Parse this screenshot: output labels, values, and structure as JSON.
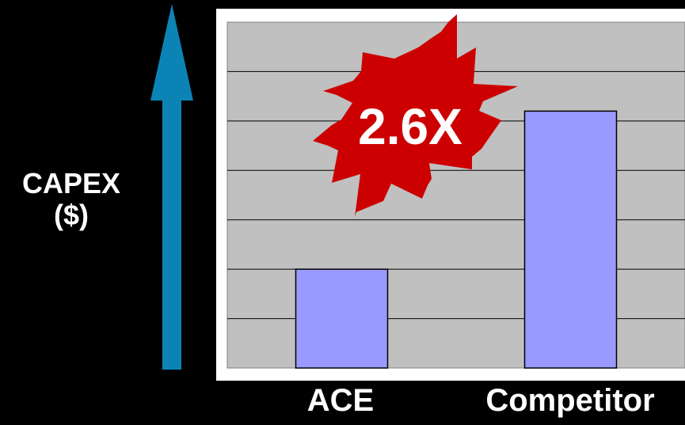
{
  "chart_data": {
    "type": "bar",
    "title": "",
    "ylabel_lines": [
      "CAPEX",
      "($)"
    ],
    "categories": [
      "ACE",
      "Competitor"
    ],
    "values": [
      1,
      2.6
    ],
    "ylim": [
      0,
      3.5
    ],
    "grid": true,
    "annotation": "2.6X",
    "colors": {
      "background": "#000000",
      "plot_frame": "#ffffff",
      "plot_area": "#c0c0c0",
      "bar": "#9999ff",
      "arrow": "#0b84b5",
      "starburst": "#cc0000",
      "annotation_text": "#ffffff"
    }
  }
}
